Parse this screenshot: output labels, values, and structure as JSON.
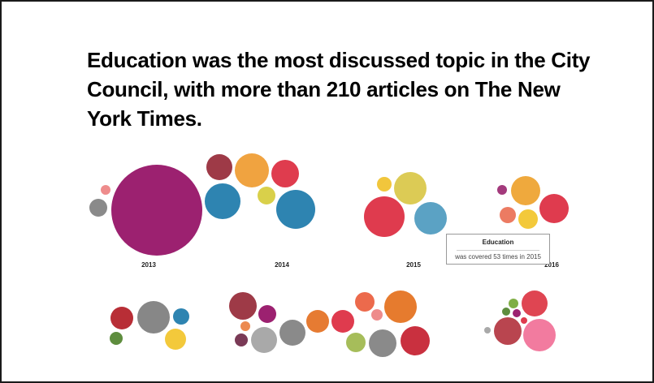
{
  "headline": "Education was the most discussed topic in the City Council, with more than 210 articles on The New York Times.",
  "tooltip": {
    "title": "Education",
    "body": "was covered 53 times in 2015"
  },
  "chart_data": {
    "type": "bubble",
    "title": "Education was the most discussed topic in the City Council, with more than 210 articles on The New York Times.",
    "groups": [
      {
        "label": "2013"
      },
      {
        "label": "2014"
      },
      {
        "label": "2015"
      },
      {
        "label": "2016"
      },
      {
        "label": ""
      },
      {
        "label": ""
      },
      {
        "label": ""
      }
    ],
    "highlight": {
      "topic": "Education",
      "year": "2015",
      "count": 53
    },
    "legend": "none"
  }
}
